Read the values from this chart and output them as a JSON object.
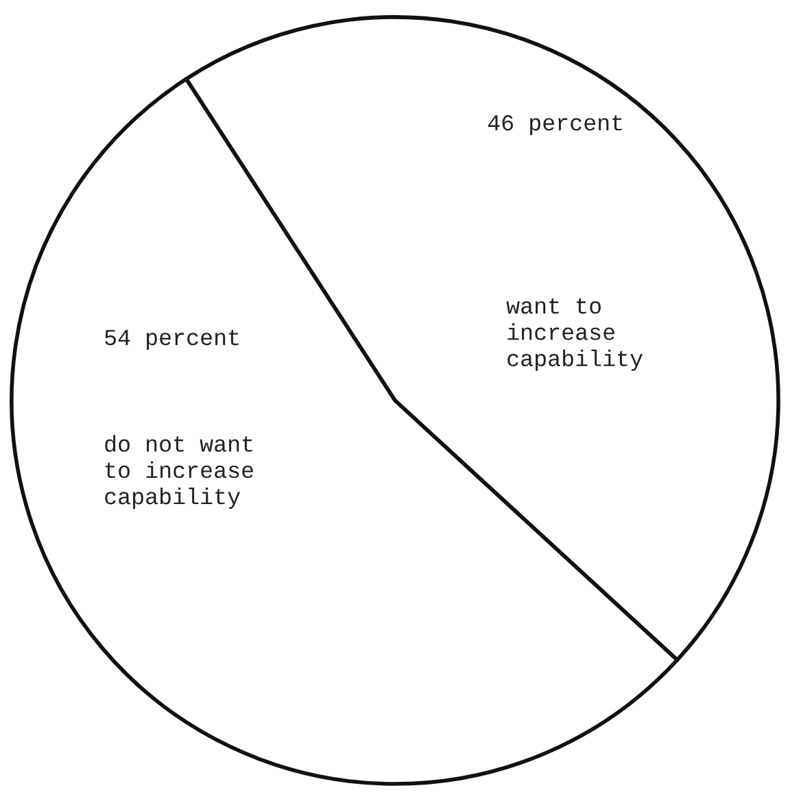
{
  "chart_data": {
    "type": "pie",
    "categories": [
      "want to\nincrease\ncapability",
      "do not want\nto increase\ncapability"
    ],
    "values": [
      46,
      54
    ],
    "value_labels": [
      "46 percent",
      "54 percent"
    ],
    "colors": [
      "#ffffff",
      "#ffffff"
    ],
    "legend": false
  }
}
